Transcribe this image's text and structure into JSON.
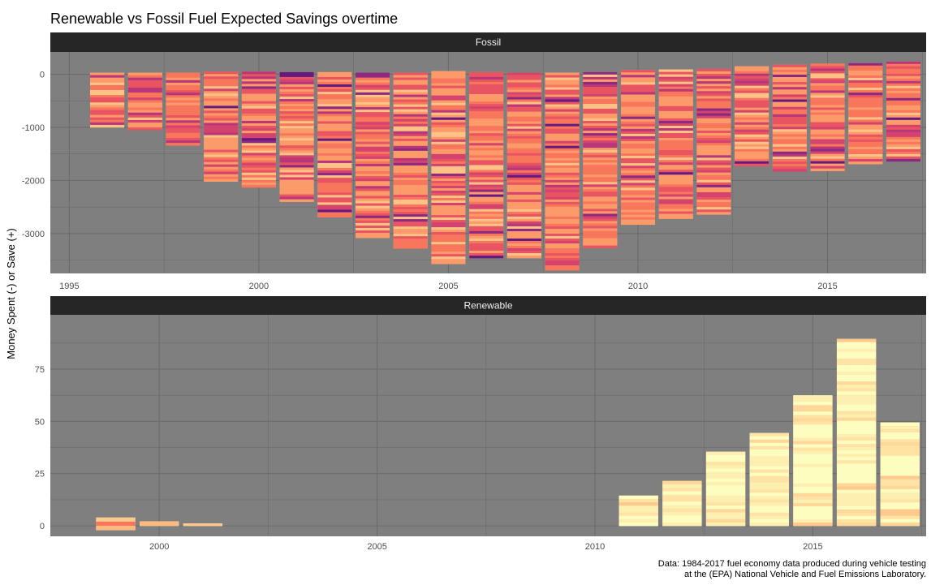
{
  "chart_data": {
    "type": "bar",
    "title": "Renewable vs Fossil Fuel Expected Savings overtime",
    "ylabel": "Money Spent (-) or Save (+)",
    "xlabel": "",
    "caption": [
      "Data: 1984-2017 fuel economy data produced during vehicle testing",
      "at the (EPA) National Vehicle and Fuel Emissions Laboratory."
    ],
    "stacked": true,
    "panels": [
      {
        "name": "Fossil",
        "xlim": [
          1994.5,
          2017.6
        ],
        "ylim": [
          -3750,
          420
        ],
        "x_ticks": [
          1995,
          2000,
          2005,
          2010,
          2015
        ],
        "y_ticks": [
          0,
          -1000,
          -2000,
          -3000
        ],
        "series": [
          {
            "year": 1996,
            "top": 30,
            "bottom": -1000
          },
          {
            "year": 1997,
            "top": 30,
            "bottom": -1050
          },
          {
            "year": 1998,
            "top": 30,
            "bottom": -1340
          },
          {
            "year": 1999,
            "top": 50,
            "bottom": -2020
          },
          {
            "year": 2000,
            "top": 50,
            "bottom": -2130
          },
          {
            "year": 2001,
            "top": 40,
            "bottom": -2400
          },
          {
            "year": 2002,
            "top": 40,
            "bottom": -2690
          },
          {
            "year": 2003,
            "top": 30,
            "bottom": -3080
          },
          {
            "year": 2004,
            "top": 30,
            "bottom": -3280
          },
          {
            "year": 2005,
            "top": 60,
            "bottom": -3570
          },
          {
            "year": 2006,
            "top": 40,
            "bottom": -3460
          },
          {
            "year": 2007,
            "top": 30,
            "bottom": -3460
          },
          {
            "year": 2008,
            "top": 30,
            "bottom": -3690
          },
          {
            "year": 2009,
            "top": 40,
            "bottom": -3270
          },
          {
            "year": 2010,
            "top": 80,
            "bottom": -2830
          },
          {
            "year": 2011,
            "top": 90,
            "bottom": -2720
          },
          {
            "year": 2012,
            "top": 100,
            "bottom": -2640
          },
          {
            "year": 2013,
            "top": 150,
            "bottom": -1730
          },
          {
            "year": 2014,
            "top": 180,
            "bottom": -1830
          },
          {
            "year": 2015,
            "top": 200,
            "bottom": -1820
          },
          {
            "year": 2016,
            "top": 210,
            "bottom": -1690
          },
          {
            "year": 2017,
            "top": 240,
            "bottom": -1640
          }
        ]
      },
      {
        "name": "Renewable",
        "xlim": [
          1997.5,
          2017.6
        ],
        "ylim": [
          -5,
          101
        ],
        "x_ticks": [
          2000,
          2005,
          2010,
          2015
        ],
        "y_ticks": [
          0,
          25,
          50,
          75
        ],
        "series": [
          {
            "year": 1999,
            "top": 4,
            "bottom": -2
          },
          {
            "year": 2000,
            "top": 2.2,
            "bottom": 0
          },
          {
            "year": 2001,
            "top": 1.2,
            "bottom": 0
          },
          {
            "year": 2011,
            "top": 14.5,
            "bottom": 0
          },
          {
            "year": 2012,
            "top": 21.5,
            "bottom": 0
          },
          {
            "year": 2013,
            "top": 35.5,
            "bottom": 0
          },
          {
            "year": 2014,
            "top": 44.5,
            "bottom": 0
          },
          {
            "year": 2015,
            "top": 62.5,
            "bottom": 0
          },
          {
            "year": 2016,
            "top": 89.5,
            "bottom": 0
          },
          {
            "year": 2017,
            "top": 49.5,
            "bottom": 0
          }
        ]
      }
    ],
    "colors": {
      "panel_bg": "#7f7f7f",
      "grid": "#6b6b6b",
      "strip_bg": "#262626",
      "fossil_palette": [
        "#fec287",
        "#fd9a6a",
        "#f8765c",
        "#e95462",
        "#d3436e",
        "#b73779",
        "#8c2981",
        "#641a80"
      ],
      "renewable_palette": [
        "#fcfdbf",
        "#fdefb0",
        "#fee3a5",
        "#fed799",
        "#fec98d",
        "#fdba80",
        "#f8765c"
      ]
    }
  }
}
